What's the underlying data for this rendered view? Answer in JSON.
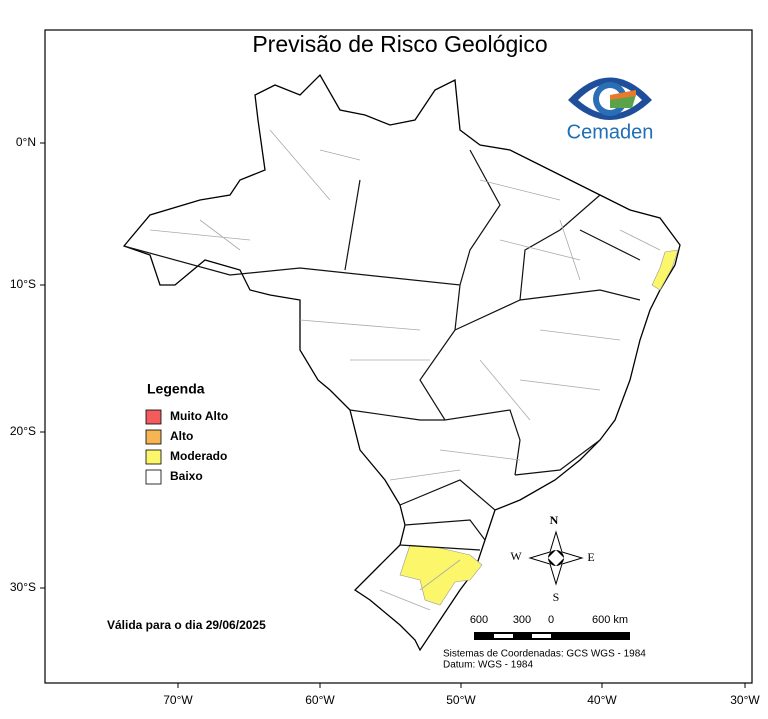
{
  "title": "Previsão de Risco Geológico",
  "logo": "Cemaden",
  "legend": {
    "title": "Legenda",
    "items": [
      {
        "label": "Muito Alto",
        "color": "#f25c5c"
      },
      {
        "label": "Alto",
        "color": "#f5b552"
      },
      {
        "label": "Moderado",
        "color": "#fbf66a"
      },
      {
        "label": "Baixo",
        "color": "#ffffff"
      }
    ]
  },
  "validity": "Válida para o dia 29/06/2025",
  "scale": {
    "labels": [
      "600",
      "300",
      "0",
      "600 km"
    ]
  },
  "compass": {
    "north": "N",
    "south": "S",
    "west": "W",
    "east": "E"
  },
  "footer": [
    "Sistemas de Coordenadas: GCS WGS - 1984",
    "Datum: WGS - 1984"
  ],
  "axes": {
    "latitude": [
      "0°N",
      "10°S",
      "20°S",
      "30°S"
    ],
    "longitude": [
      "70°W",
      "60°W",
      "50°W",
      "40°W",
      "30°W"
    ]
  }
}
